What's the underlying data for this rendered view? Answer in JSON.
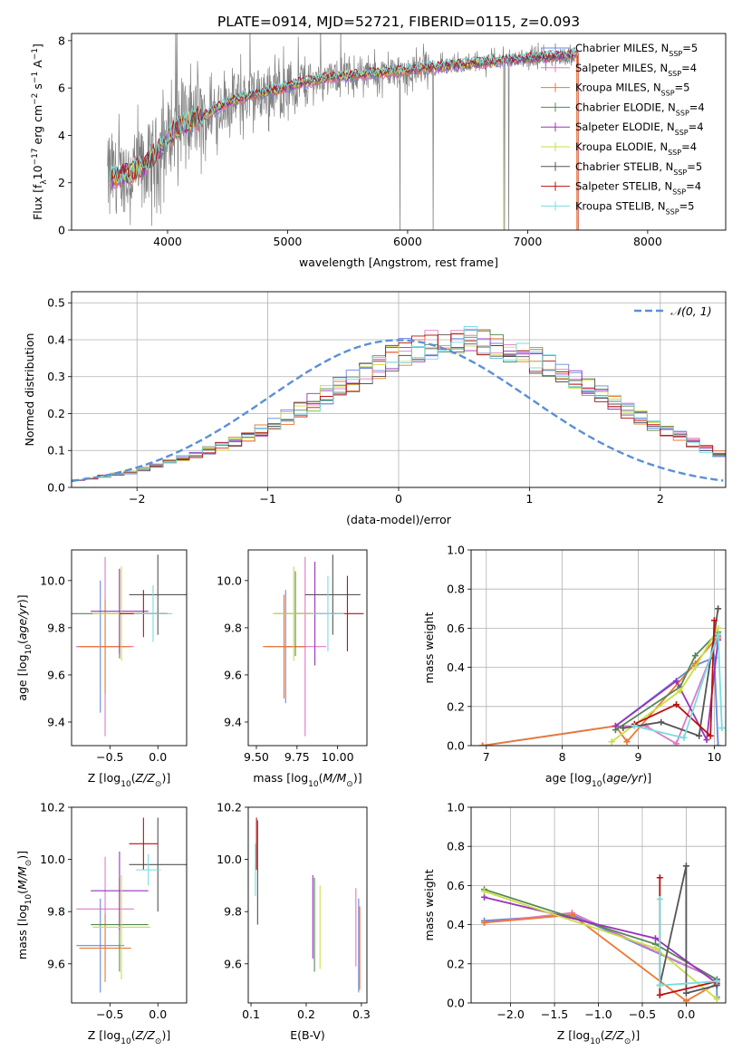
{
  "figure_title": "PLATE=0914, MJD=52721, FIBERID=0115, z=0.093",
  "colors": {
    "chabrier_miles": "#6688dd",
    "salpeter_miles": "#e078c8",
    "kroupa_miles": "#ee7733",
    "chabrier_elodie": "#558855",
    "salpeter_elodie": "#9933bb",
    "kroupa_elodie": "#ccdd44",
    "chabrier_stelib": "#555555",
    "salpeter_stelib": "#bb1111",
    "kroupa_stelib": "#77dddd",
    "observed": "#808080",
    "gaussian": "#5b8fd6"
  },
  "chart_data": [
    {
      "id": "spectrum",
      "type": "line",
      "title": "PLATE=0914, MJD=52721, FIBERID=0115, z=0.093",
      "xlabel": "wavelength [Angstrom, rest frame]",
      "ylabel": "Flux [f",
      "ylabel_parts": [
        "Flux [f",
        "λ",
        "10",
        "−17",
        " erg cm",
        "−2",
        " s",
        "−1",
        " A",
        "−1",
        "]"
      ],
      "xlim": [
        3200,
        8650
      ],
      "ylim": [
        0,
        8.3
      ],
      "xticks": [
        4000,
        5000,
        6000,
        7000,
        8000
      ],
      "yticks": [
        0,
        2,
        4,
        6,
        8
      ],
      "grid": false,
      "legend_position": "right",
      "legend": [
        {
          "name": "Chabrier MILES, N",
          "sub": "SSP",
          "suffix": "=5",
          "color": "#6688dd"
        },
        {
          "name": "Salpeter MILES, N",
          "sub": "SSP",
          "suffix": "=4",
          "color": "#e078c8"
        },
        {
          "name": "Kroupa MILES, N",
          "sub": "SSP",
          "suffix": "=5",
          "color": "#ee7733"
        },
        {
          "name": "Chabrier ELODIE, N",
          "sub": "SSP",
          "suffix": "=4",
          "color": "#558855"
        },
        {
          "name": "Salpeter ELODIE, N",
          "sub": "SSP",
          "suffix": "=4",
          "color": "#9933bb"
        },
        {
          "name": "Kroupa ELODIE, N",
          "sub": "SSP",
          "suffix": "=4",
          "color": "#ccdd44"
        },
        {
          "name": "Chabrier STELIB, N",
          "sub": "SSP",
          "suffix": "=5",
          "color": "#555555"
        },
        {
          "name": "Salpeter STELIB, N",
          "sub": "SSP",
          "suffix": "=4",
          "color": "#bb1111"
        },
        {
          "name": "Kroupa STELIB, N",
          "sub": "SSP",
          "suffix": "=5",
          "color": "#77dddd"
        }
      ],
      "continuum": {
        "x": [
          3500,
          3600,
          3700,
          3800,
          3900,
          4000,
          4100,
          4200,
          4300,
          4400,
          4500,
          4700,
          4900,
          5100,
          5300,
          5500,
          5700,
          5900,
          6100,
          6300,
          6500,
          6700,
          6900,
          7100,
          7300,
          7400
        ],
        "y": [
          2.2,
          2.3,
          2.4,
          2.7,
          3.2,
          3.9,
          4.4,
          4.6,
          4.8,
          5.1,
          5.4,
          5.7,
          5.9,
          6.2,
          6.4,
          6.5,
          6.6,
          6.7,
          6.8,
          6.9,
          7.0,
          7.1,
          7.2,
          7.3,
          7.35,
          7.4
        ]
      },
      "model_cutoffs": [
        {
          "series": "Kroupa ELODIE",
          "x": 6800
        },
        {
          "series": "Kroupa MILES",
          "x": 7410
        },
        {
          "series": "Salpeter STELIB",
          "x": 7420
        }
      ],
      "x_range_observed": [
        3500,
        7420
      ]
    },
    {
      "id": "residuals",
      "type": "step",
      "xlabel": "(data-model)/error",
      "ylabel": "Normed distribution",
      "xlim": [
        -2.5,
        2.5
      ],
      "ylim": [
        0,
        0.53
      ],
      "xticks": [
        -2,
        -1,
        0,
        1,
        2
      ],
      "yticks": [
        0.0,
        0.1,
        0.2,
        0.3,
        0.4,
        0.5
      ],
      "grid": true,
      "legend_position": "top-right",
      "legend_label": "𝒩(0, 1)",
      "bin_width": 0.1,
      "bin_start": -2.5,
      "envelope": [
        0.02,
        0.025,
        0.03,
        0.035,
        0.04,
        0.05,
        0.06,
        0.07,
        0.08,
        0.09,
        0.1,
        0.11,
        0.125,
        0.14,
        0.155,
        0.17,
        0.19,
        0.21,
        0.23,
        0.25,
        0.27,
        0.29,
        0.31,
        0.33,
        0.35,
        0.365,
        0.38,
        0.39,
        0.395,
        0.4,
        0.4,
        0.395,
        0.39,
        0.375,
        0.36,
        0.345,
        0.33,
        0.31,
        0.29,
        0.27,
        0.25,
        0.23,
        0.21,
        0.19,
        0.17,
        0.155,
        0.14,
        0.12,
        0.105,
        0.09,
        0.08
      ]
    },
    {
      "id": "age_vs_Z",
      "type": "errorbar",
      "xlabel": "Z [log10(Z/Z⊙)]",
      "ylabel": "age [log10(age/yr)]",
      "xlim": [
        -0.9,
        0.3
      ],
      "ylim": [
        9.3,
        10.13
      ],
      "xticks": [
        -0.5,
        0.0
      ],
      "yticks": [
        9.4,
        9.6,
        9.8,
        10.0
      ],
      "points": [
        {
          "series": "Chabrier MILES",
          "x": -0.6,
          "y": 9.72,
          "xerr": 0.25,
          "yerr": 0.28
        },
        {
          "series": "Salpeter MILES",
          "x": -0.55,
          "y": 9.72,
          "xerr": 0.3,
          "yerr": 0.38
        },
        {
          "series": "Kroupa MILES",
          "x": -0.55,
          "y": 9.72,
          "xerr": 0.27,
          "yerr": 0.2
        },
        {
          "series": "Chabrier ELODIE",
          "x": -0.4,
          "y": 9.86,
          "xerr": 0.5,
          "yerr": 0.19
        },
        {
          "series": "Salpeter ELODIE",
          "x": -0.4,
          "y": 9.87,
          "xerr": 0.3,
          "yerr": 0.18
        },
        {
          "series": "Kroupa ELODIE",
          "x": -0.38,
          "y": 9.86,
          "xerr": 0.3,
          "yerr": 0.2
        },
        {
          "series": "Chabrier STELIB",
          "x": 0.0,
          "y": 9.94,
          "xerr": 0.3,
          "yerr": 0.17
        },
        {
          "series": "Salpeter STELIB",
          "x": -0.15,
          "y": 9.86,
          "xerr": 0.25,
          "yerr": 0.1
        },
        {
          "series": "Kroupa STELIB",
          "x": -0.05,
          "y": 9.86,
          "xerr": 0.2,
          "yerr": 0.12
        }
      ]
    },
    {
      "id": "age_vs_mass",
      "type": "errorbar",
      "xlabel": "mass [log10(M/M⊙)]",
      "ylabel": "",
      "xlim": [
        9.45,
        10.18
      ],
      "ylim": [
        9.3,
        10.13
      ],
      "xticks": [
        9.5,
        9.75,
        10.0
      ],
      "yticks": [
        9.4,
        9.6,
        9.8,
        10.0
      ],
      "points": [
        {
          "series": "Chabrier MILES",
          "x": 9.68,
          "y": 9.72,
          "xerr": 0.13,
          "yerr": 0.24
        },
        {
          "series": "Salpeter MILES",
          "x": 9.8,
          "y": 9.72,
          "xerr": 0.13,
          "yerr": 0.38
        },
        {
          "series": "Kroupa MILES",
          "x": 9.67,
          "y": 9.72,
          "xerr": 0.13,
          "yerr": 0.22
        },
        {
          "series": "Chabrier ELODIE",
          "x": 9.74,
          "y": 9.86,
          "xerr": 0.13,
          "yerr": 0.18
        },
        {
          "series": "Salpeter ELODIE",
          "x": 9.86,
          "y": 9.86,
          "xerr": 0.13,
          "yerr": 0.22
        },
        {
          "series": "Kroupa ELODIE",
          "x": 9.73,
          "y": 9.86,
          "xerr": 0.13,
          "yerr": 0.2
        },
        {
          "series": "Chabrier STELIB",
          "x": 9.97,
          "y": 9.94,
          "xerr": 0.17,
          "yerr": 0.17
        },
        {
          "series": "Salpeter STELIB",
          "x": 10.06,
          "y": 9.86,
          "xerr": 0.1,
          "yerr": 0.16
        },
        {
          "series": "Kroupa STELIB",
          "x": 9.94,
          "y": 9.86,
          "xerr": 0.1,
          "yerr": 0.16
        }
      ]
    },
    {
      "id": "weight_vs_age",
      "type": "line",
      "xlabel": "age [log10(age/yr)]",
      "ylabel": "mass weight",
      "xlim": [
        6.8,
        10.15
      ],
      "ylim": [
        0,
        1.0
      ],
      "xticks": [
        7,
        8,
        9,
        10
      ],
      "yticks": [
        0.0,
        0.2,
        0.4,
        0.6,
        0.8,
        1.0
      ],
      "grid": true,
      "series": [
        {
          "name": "Chabrier MILES",
          "x": [
            6.95,
            8.7,
            9.75,
            10.0,
            10.05
          ],
          "y": [
            0.0,
            0.1,
            0.41,
            0.45,
            0.0
          ]
        },
        {
          "name": "Salpeter MILES",
          "x": [
            8.7,
            9.1,
            9.5,
            10.05
          ],
          "y": [
            0.1,
            0.1,
            0.01,
            0.55
          ]
        },
        {
          "name": "Kroupa MILES",
          "x": [
            6.95,
            8.7,
            8.85,
            9.75,
            10.05
          ],
          "y": [
            0.0,
            0.1,
            0.02,
            0.42,
            0.56
          ]
        },
        {
          "name": "Chabrier ELODIE",
          "x": [
            8.7,
            9.55,
            9.75,
            10.05
          ],
          "y": [
            0.08,
            0.3,
            0.46,
            0.58
          ]
        },
        {
          "name": "Salpeter ELODIE",
          "x": [
            8.7,
            9.5,
            9.9,
            10.05
          ],
          "y": [
            0.1,
            0.33,
            0.03,
            0.54
          ]
        },
        {
          "name": "Kroupa ELODIE",
          "x": [
            8.65,
            9.55,
            9.75,
            10.05
          ],
          "y": [
            0.02,
            0.28,
            0.4,
            0.6
          ]
        },
        {
          "name": "Chabrier STELIB",
          "x": [
            8.8,
            9.3,
            9.8,
            10.05
          ],
          "y": [
            0.09,
            0.12,
            0.05,
            0.7
          ]
        },
        {
          "name": "Salpeter STELIB",
          "x": [
            8.95,
            9.5,
            9.95,
            10.0
          ],
          "y": [
            0.11,
            0.21,
            0.05,
            0.64
          ]
        },
        {
          "name": "Kroupa STELIB",
          "x": [
            8.95,
            9.6,
            10.05,
            10.1
          ],
          "y": [
            0.1,
            0.04,
            0.57,
            0.09
          ]
        }
      ]
    },
    {
      "id": "mass_vs_Z",
      "type": "errorbar",
      "xlabel": "Z [log10(Z/Z⊙)]",
      "ylabel": "mass [log10(M/M⊙)]",
      "xlim": [
        -0.9,
        0.3
      ],
      "ylim": [
        9.45,
        10.2
      ],
      "xticks": [
        -0.5,
        0.0
      ],
      "yticks": [
        9.6,
        9.8,
        10.0,
        10.2
      ],
      "points": [
        {
          "series": "Chabrier MILES",
          "x": -0.6,
          "y": 9.67,
          "xerr": 0.25,
          "yerr": 0.18
        },
        {
          "series": "Salpeter MILES",
          "x": -0.55,
          "y": 9.81,
          "xerr": 0.3,
          "yerr": 0.2
        },
        {
          "series": "Kroupa MILES",
          "x": -0.55,
          "y": 9.66,
          "xerr": 0.27,
          "yerr": 0.13
        },
        {
          "series": "Chabrier ELODIE",
          "x": -0.4,
          "y": 9.75,
          "xerr": 0.3,
          "yerr": 0.18
        },
        {
          "series": "Salpeter ELODIE",
          "x": -0.4,
          "y": 9.88,
          "xerr": 0.3,
          "yerr": 0.15
        },
        {
          "series": "Kroupa ELODIE",
          "x": -0.38,
          "y": 9.74,
          "xerr": 0.3,
          "yerr": 0.2
        },
        {
          "series": "Chabrier STELIB",
          "x": 0.0,
          "y": 9.98,
          "xerr": 0.3,
          "yerr": 0.18
        },
        {
          "series": "Salpeter STELIB",
          "x": -0.15,
          "y": 10.06,
          "xerr": 0.15,
          "yerr": 0.1
        },
        {
          "series": "Kroupa STELIB",
          "x": -0.1,
          "y": 9.96,
          "xerr": 0.13,
          "yerr": 0.06
        }
      ]
    },
    {
      "id": "mass_vs_ebv",
      "type": "errorbar",
      "xlabel": "E(B-V)",
      "ylabel": "",
      "xlim": [
        0.095,
        0.31
      ],
      "ylim": [
        9.45,
        10.2
      ],
      "xticks": [
        0.1,
        0.2,
        0.3
      ],
      "yticks": [
        9.6,
        9.8,
        10.0,
        10.2
      ],
      "points": [
        {
          "series": "Chabrier MILES",
          "x": 0.295,
          "y": 9.67,
          "xerr": 0.0,
          "yerr": 0.18
        },
        {
          "series": "Salpeter MILES",
          "x": 0.29,
          "y": 9.74,
          "xerr": 0.0,
          "yerr": 0.15
        },
        {
          "series": "Kroupa MILES",
          "x": 0.297,
          "y": 9.66,
          "xerr": 0.0,
          "yerr": 0.16
        },
        {
          "series": "Chabrier ELODIE",
          "x": 0.215,
          "y": 9.75,
          "xerr": 0.0,
          "yerr": 0.18
        },
        {
          "series": "Salpeter ELODIE",
          "x": 0.212,
          "y": 9.78,
          "xerr": 0.0,
          "yerr": 0.16
        },
        {
          "series": "Kroupa ELODIE",
          "x": 0.225,
          "y": 9.74,
          "xerr": 0.0,
          "yerr": 0.16
        },
        {
          "series": "Chabrier STELIB",
          "x": 0.112,
          "y": 9.95,
          "xerr": 0.0,
          "yerr": 0.2
        },
        {
          "series": "Salpeter STELIB",
          "x": 0.11,
          "y": 10.06,
          "xerr": 0.0,
          "yerr": 0.1
        },
        {
          "series": "Kroupa STELIB",
          "x": 0.108,
          "y": 9.96,
          "xerr": 0.0,
          "yerr": 0.1
        }
      ]
    },
    {
      "id": "weight_vs_Z",
      "type": "line",
      "xlabel": "Z [log10(Z/Z⊙)]",
      "ylabel": "mass weight",
      "xlim": [
        -2.45,
        0.45
      ],
      "ylim": [
        0,
        1.0
      ],
      "xticks": [
        -2.0,
        -1.5,
        -1.0,
        -0.5,
        0.0
      ],
      "yticks": [
        0.0,
        0.2,
        0.4,
        0.6,
        0.8,
        1.0
      ],
      "grid": true,
      "series": [
        {
          "name": "Chabrier MILES",
          "x": [
            -2.3,
            -1.3,
            0.35,
            0.35
          ],
          "y": [
            0.42,
            0.45,
            0.12,
            0.03
          ]
        },
        {
          "name": "Salpeter MILES",
          "x": [
            -2.3,
            -1.3,
            0.35
          ],
          "y": [
            0.41,
            0.46,
            0.12
          ]
        },
        {
          "name": "Kroupa MILES",
          "x": [
            -2.3,
            -1.3,
            0.0,
            0.35
          ],
          "y": [
            0.41,
            0.45,
            0.01,
            0.1
          ]
        },
        {
          "name": "Chabrier ELODIE",
          "x": [
            -2.3,
            -0.35,
            0.35
          ],
          "y": [
            0.58,
            0.3,
            0.12
          ]
        },
        {
          "name": "Salpeter ELODIE",
          "x": [
            -2.3,
            -0.35,
            0.35
          ],
          "y": [
            0.54,
            0.33,
            0.1
          ]
        },
        {
          "name": "Kroupa ELODIE",
          "x": [
            -2.3,
            -0.35,
            0.35
          ],
          "y": [
            0.57,
            0.28,
            0.02
          ]
        },
        {
          "name": "Chabrier STELIB",
          "x": [
            -0.3,
            0.0,
            0.0,
            0.35
          ],
          "y": [
            0.09,
            0.7,
            0.05,
            0.09
          ]
        },
        {
          "name": "Salpeter STELIB",
          "x": [
            -0.3,
            -0.3,
            0.35
          ],
          "y": [
            0.64,
            0.04,
            0.11
          ]
        },
        {
          "name": "Kroupa STELIB",
          "x": [
            -0.3,
            -0.3,
            0.35
          ],
          "y": [
            0.53,
            0.09,
            0.11
          ]
        }
      ]
    }
  ]
}
